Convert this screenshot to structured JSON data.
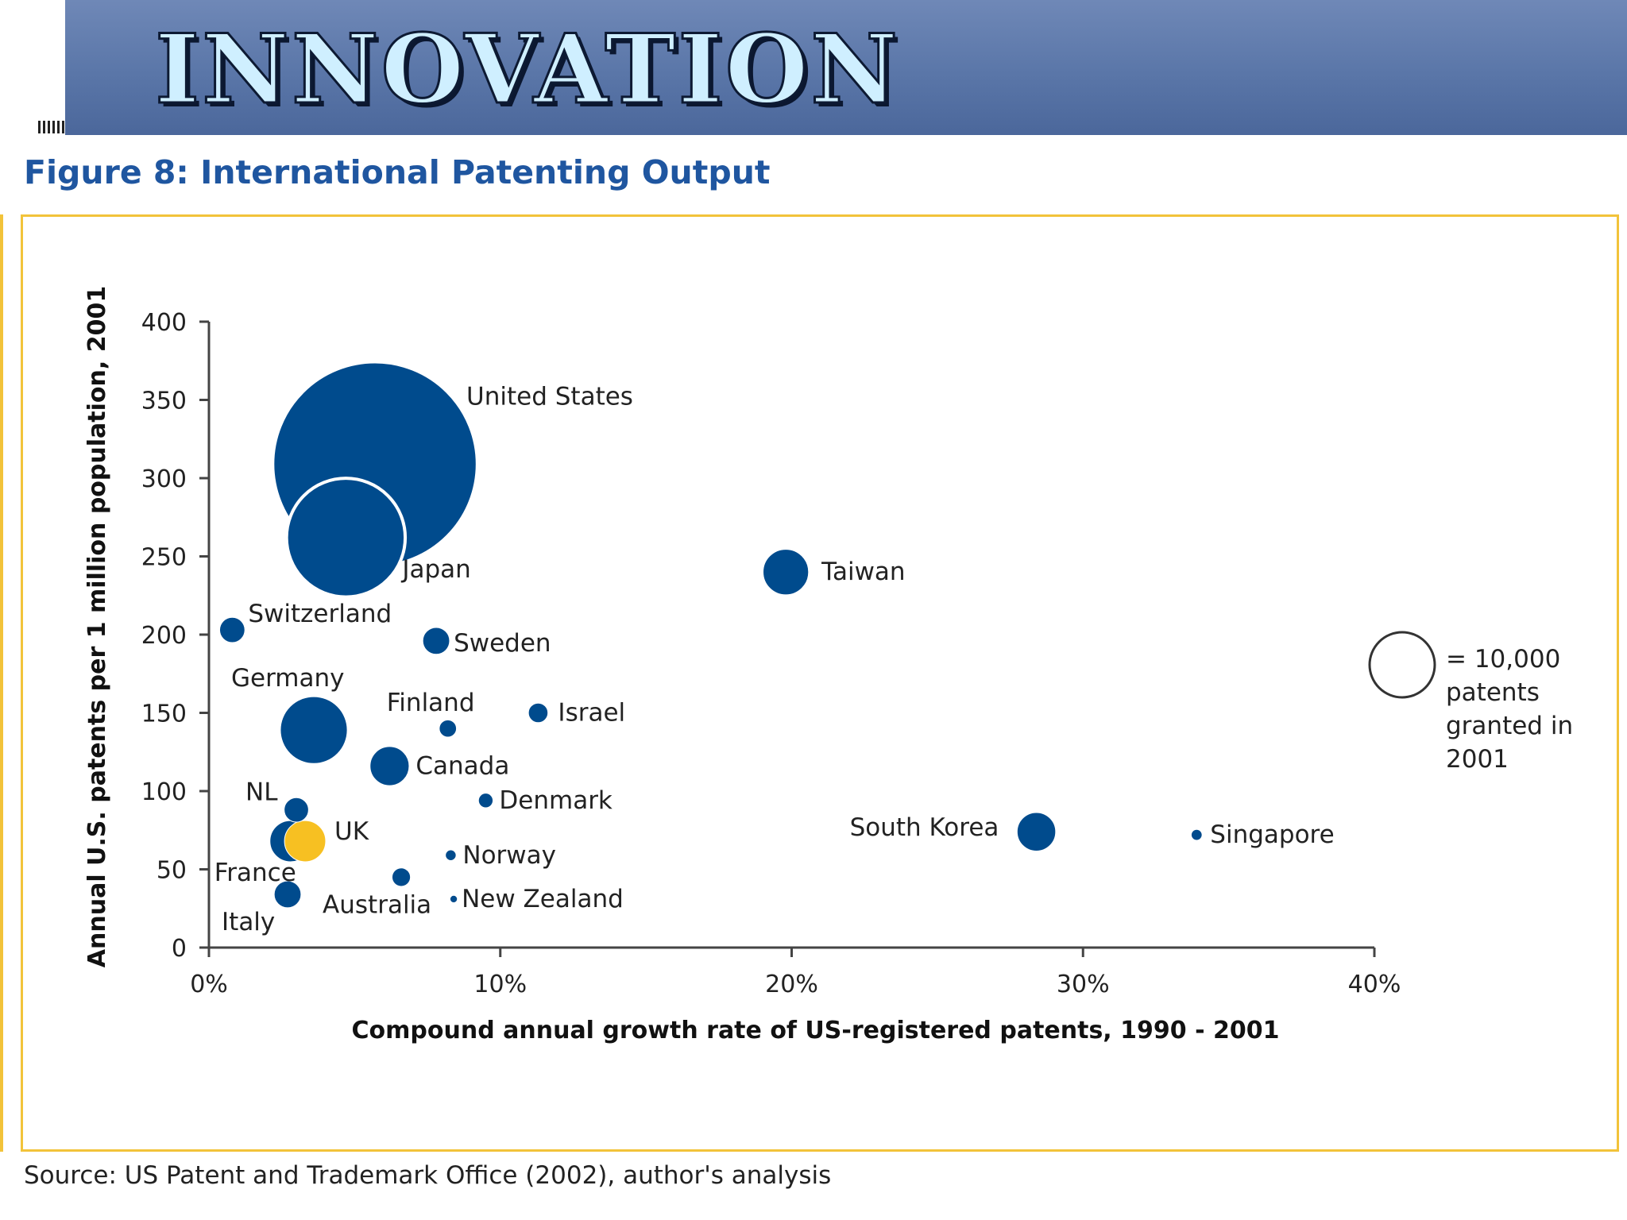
{
  "slide": {
    "banner_title": "INNOVATION",
    "figure_title": "Figure 8: International Patenting Output",
    "source": "Source: US Patent and Trademark Office (2002), author's analysis",
    "colors": {
      "banner": "#5a76a8",
      "title_text": "#cfefff",
      "figure_title": "#1f56a0",
      "frame": "#f2c33a",
      "bubble": "#004b8d",
      "highlight": "#f7c022"
    }
  },
  "chart_data": {
    "type": "scatter",
    "title": "Figure 8: International Patenting Output",
    "xlabel": "Compound annual growth rate of US-registered patents, 1990 - 2001",
    "ylabel": "Annual U.S. patents per 1 million population, 2001",
    "xlim": [
      0,
      40
    ],
    "ylim": [
      0,
      400
    ],
    "x_ticks": [
      0,
      10,
      20,
      30,
      40
    ],
    "x_tick_labels": [
      "0%",
      "10%",
      "20%",
      "30%",
      "40%"
    ],
    "y_ticks": [
      0,
      50,
      100,
      150,
      200,
      250,
      300,
      350,
      400
    ],
    "y_tick_labels": [
      "0",
      "50",
      "100",
      "150",
      "200",
      "250",
      "300",
      "350",
      "400"
    ],
    "grid": false,
    "legend": {
      "text": [
        "= 10,000",
        "patents",
        "granted in",
        "2001"
      ],
      "patents": 10000,
      "placement": "right"
    },
    "points": [
      {
        "name": "United States",
        "x": 5.7,
        "y": 309,
        "patents": 98600,
        "color": "#004b8d"
      },
      {
        "name": "Japan",
        "x": 4.7,
        "y": 262,
        "patents": 33200,
        "color": "#004b8d"
      },
      {
        "name": "Taiwan",
        "x": 19.8,
        "y": 240,
        "patents": 5400,
        "color": "#004b8d"
      },
      {
        "name": "Switzerland",
        "x": 0.8,
        "y": 203,
        "patents": 1500,
        "color": "#004b8d"
      },
      {
        "name": "Sweden",
        "x": 7.8,
        "y": 196,
        "patents": 1700,
        "color": "#004b8d"
      },
      {
        "name": "Germany",
        "x": 3.6,
        "y": 139,
        "patents": 11300,
        "color": "#004b8d"
      },
      {
        "name": "Finland",
        "x": 8.2,
        "y": 140,
        "patents": 700,
        "color": "#004b8d"
      },
      {
        "name": "Israel",
        "x": 11.3,
        "y": 150,
        "patents": 900,
        "color": "#004b8d"
      },
      {
        "name": "Canada",
        "x": 6.2,
        "y": 116,
        "patents": 3600,
        "color": "#004b8d"
      },
      {
        "name": "Denmark",
        "x": 9.5,
        "y": 94,
        "patents": 500,
        "color": "#004b8d"
      },
      {
        "name": "NL",
        "x": 3.0,
        "y": 88,
        "patents": 1400,
        "color": "#004b8d"
      },
      {
        "name": "France",
        "x": 2.8,
        "y": 68,
        "patents": 4000,
        "color": "#004b8d"
      },
      {
        "name": "UK",
        "x": 3.3,
        "y": 68,
        "patents": 4000,
        "color": "#f7c022"
      },
      {
        "name": "Norway",
        "x": 8.3,
        "y": 59,
        "patents": 270,
        "color": "#004b8d"
      },
      {
        "name": "Australia",
        "x": 6.6,
        "y": 45,
        "patents": 800,
        "color": "#004b8d"
      },
      {
        "name": "Italy",
        "x": 2.7,
        "y": 34,
        "patents": 1700,
        "color": "#004b8d"
      },
      {
        "name": "New Zealand",
        "x": 8.4,
        "y": 31,
        "patents": 130,
        "color": "#004b8d"
      },
      {
        "name": "South Korea",
        "x": 28.4,
        "y": 74,
        "patents": 3500,
        "color": "#004b8d"
      },
      {
        "name": "Singapore",
        "x": 33.9,
        "y": 72,
        "patents": 280,
        "color": "#004b8d"
      }
    ]
  }
}
